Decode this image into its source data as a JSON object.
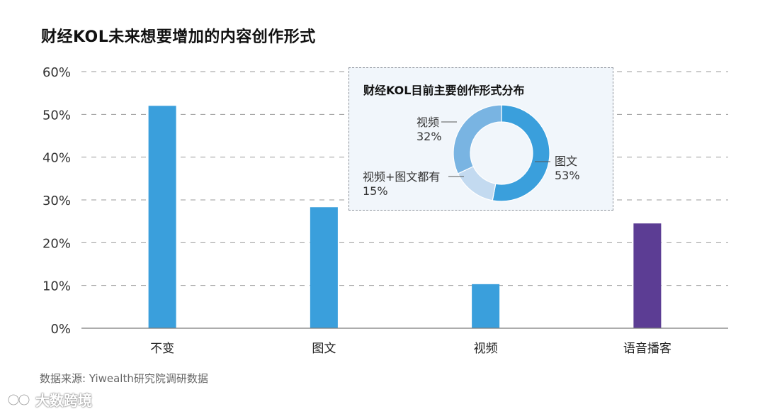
{
  "chart_data": [
    {
      "type": "bar",
      "title": "财经KOL未来想要增加的内容创作形式",
      "categories": [
        "不变",
        "图文",
        "视频",
        "语音播客"
      ],
      "values": [
        52,
        28.3,
        10.3,
        24.5
      ],
      "ytick_labels": [
        "0%",
        "10%",
        "20%",
        "30%",
        "40%",
        "50%",
        "60%"
      ],
      "ylim": [
        0,
        60
      ],
      "grid": true,
      "colors": [
        "#3a9fdc",
        "#3a9fdc",
        "#3a9fdc",
        "#5c3d94"
      ]
    },
    {
      "type": "pie",
      "title": "财经KOL目前主要创作形式分布",
      "slices": [
        {
          "label": "图文",
          "value_label": "53%",
          "value": 53,
          "color": "#3a9fdc"
        },
        {
          "label": "视频+图文都有",
          "value_label": "15%",
          "value": 15,
          "color": "#c3daf0"
        },
        {
          "label": "视频",
          "value_label": "32%",
          "value": 32,
          "color": "#79b4e2"
        }
      ]
    }
  ],
  "source": "数据来源: Yiwealth研究院调研数据",
  "watermark": "大数跨境"
}
